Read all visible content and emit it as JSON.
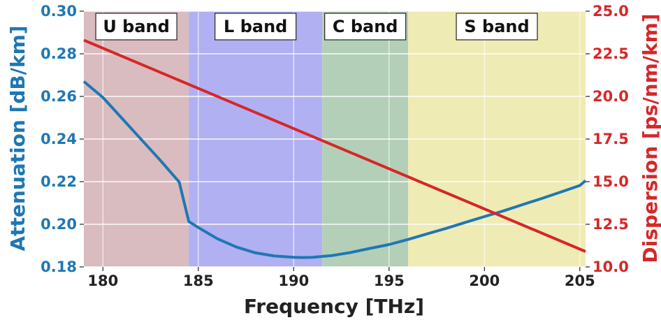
{
  "chart_data": {
    "type": "line",
    "xlabel": "Frequency [THz]",
    "ylabel_left": "Attenuation [dB/km]",
    "ylabel_right": "Dispersion [ps/nm/km]",
    "xlim": [
      179,
      205.3
    ],
    "ylim_left": [
      0.18,
      0.3
    ],
    "ylim_right": [
      10.0,
      25.0
    ],
    "x_ticks": [
      "180",
      "185",
      "190",
      "195",
      "200",
      "205"
    ],
    "y_left_ticks": [
      "0.18",
      "0.20",
      "0.22",
      "0.24",
      "0.26",
      "0.28",
      "0.30"
    ],
    "y_right_ticks": [
      "10.0",
      "12.5",
      "15.0",
      "17.5",
      "20.0",
      "22.5",
      "25.0"
    ],
    "grid": true,
    "bands": [
      {
        "label": "U band",
        "x0": 179,
        "x1": 184.5,
        "color": "#d9bcbf"
      },
      {
        "label": "L band",
        "x0": 184.5,
        "x1": 191.5,
        "color": "#b1b0f2"
      },
      {
        "label": "C band",
        "x0": 191.5,
        "x1": 196,
        "color": "#b4cfb7"
      },
      {
        "label": "S band",
        "x0": 196,
        "x1": 205.3,
        "color": "#efebb4"
      }
    ],
    "series": [
      {
        "axis": "left",
        "color": "#1f77b4",
        "x": [
          179,
          180,
          181,
          182,
          183,
          184,
          184.5,
          185,
          186,
          187,
          188,
          189,
          190,
          190.5,
          191,
          192,
          193,
          194,
          195,
          196,
          197,
          198,
          199,
          200,
          201,
          202,
          203,
          204,
          205,
          205.3
        ],
        "y": [
          0.267,
          0.2595,
          0.2497,
          0.2399,
          0.2301,
          0.2198,
          0.2013,
          0.1985,
          0.1932,
          0.1893,
          0.1866,
          0.1851,
          0.1845,
          0.1844,
          0.1845,
          0.1853,
          0.1868,
          0.1887,
          0.1905,
          0.1929,
          0.1955,
          0.1981,
          0.2009,
          0.2036,
          0.2063,
          0.2092,
          0.2121,
          0.2151,
          0.2182,
          0.2205
        ]
      },
      {
        "axis": "right",
        "color": "#d62728",
        "x": [
          179,
          205.3
        ],
        "y": [
          23.3,
          10.9
        ]
      }
    ]
  }
}
